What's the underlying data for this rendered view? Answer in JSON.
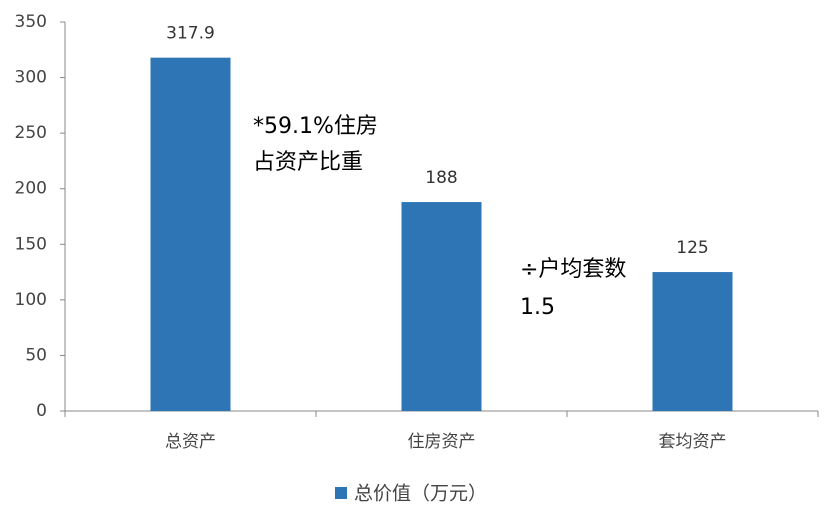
{
  "chart_data": {
    "type": "bar",
    "categories": [
      "总资产",
      "住房资产",
      "套均资产"
    ],
    "series": [
      {
        "name": "总价值（万元）",
        "color": "#2e75b6",
        "values": [
          317.9,
          188,
          125
        ]
      }
    ],
    "ylim": [
      0,
      350
    ],
    "yticks": [
      0,
      50,
      100,
      150,
      200,
      250,
      300,
      350
    ],
    "grid": false,
    "legend": "bottom",
    "annotations": [
      "*59.1%住房",
      "占资产比重",
      "÷户均套数",
      "1.5"
    ]
  }
}
